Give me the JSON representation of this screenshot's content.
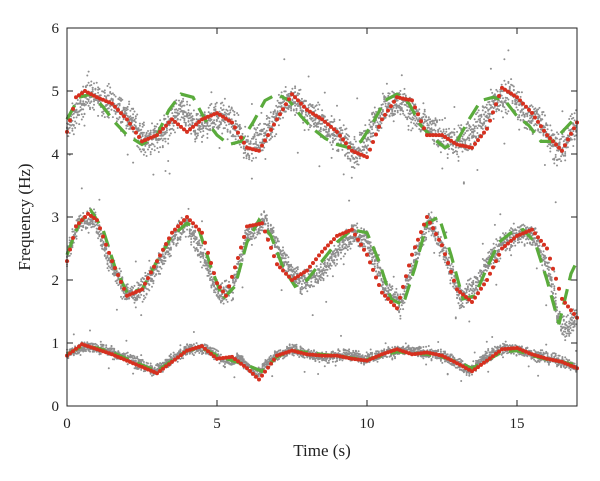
{
  "chart_data": {
    "type": "scatter",
    "title": "",
    "xlabel": "Time (s)",
    "ylabel": "Frequency (Hz)",
    "xlim": [
      0,
      17
    ],
    "ylim": [
      0,
      6
    ],
    "x_ticks": [
      0,
      5,
      10,
      15
    ],
    "y_ticks": [
      0,
      1,
      2,
      3,
      4,
      5,
      6
    ],
    "grid": false,
    "legend": "none",
    "colors": {
      "scatter": "#8f8f8f",
      "red_series": "#d6301f",
      "green_series": "#5aab3c"
    },
    "series": [
      {
        "style": "gray-dots",
        "bands": [
          {
            "x": [
              0,
              0.7,
              1.5,
              2.2,
              2.6,
              3.2,
              3.8,
              4.3,
              5.0,
              5.5,
              6.0,
              6.6,
              7.2,
              7.6,
              8.2,
              9.0,
              9.6,
              10.0,
              10.6,
              11.2,
              11.8,
              12.4,
              13.0,
              13.6,
              14.2,
              14.8,
              15.3,
              15.8,
              16.4,
              17.0
            ],
            "y": [
              4.4,
              4.95,
              4.8,
              4.5,
              4.2,
              4.35,
              4.7,
              4.4,
              4.6,
              4.5,
              4.1,
              4.3,
              4.8,
              4.85,
              4.6,
              4.3,
              4.0,
              4.25,
              4.8,
              4.8,
              4.5,
              4.3,
              4.15,
              4.35,
              4.8,
              4.95,
              4.6,
              4.55,
              4.0,
              4.5
            ],
            "spread": 0.22
          },
          {
            "x": [
              0,
              0.4,
              0.9,
              1.4,
              1.9,
              2.3,
              2.9,
              3.5,
              4.0,
              4.6,
              5.1,
              5.5,
              6.0,
              6.6,
              7.2,
              7.8,
              8.4,
              9.0,
              9.6,
              10.1,
              10.6,
              11.1,
              11.6,
              12.1,
              12.6,
              13.1,
              13.6,
              14.1,
              14.6,
              15.1,
              15.6,
              16.0,
              16.5,
              17.0
            ],
            "y": [
              2.4,
              2.9,
              3.0,
              2.3,
              1.85,
              1.75,
              2.1,
              2.6,
              2.9,
              2.3,
              1.75,
              1.85,
              2.7,
              2.95,
              2.35,
              1.95,
              2.1,
              2.45,
              2.75,
              2.55,
              1.9,
              1.6,
              2.3,
              2.95,
              2.4,
              1.7,
              1.9,
              2.35,
              2.6,
              2.75,
              2.7,
              2.2,
              1.2,
              1.4
            ],
            "spread": 0.16
          },
          {
            "x": [
              0,
              0.6,
              1.2,
              1.8,
              2.4,
              2.9,
              3.4,
              4.0,
              4.6,
              5.2,
              5.8,
              6.3,
              6.9,
              7.5,
              8.1,
              8.7,
              9.3,
              9.9,
              10.5,
              11.1,
              11.7,
              12.3,
              12.9,
              13.4,
              14.0,
              14.6,
              15.2,
              15.8,
              16.4,
              17.0
            ],
            "y": [
              0.82,
              0.95,
              0.9,
              0.8,
              0.68,
              0.55,
              0.7,
              0.9,
              0.92,
              0.72,
              0.75,
              0.5,
              0.78,
              0.9,
              0.82,
              0.78,
              0.82,
              0.76,
              0.82,
              0.88,
              0.86,
              0.82,
              0.72,
              0.55,
              0.8,
              0.92,
              0.88,
              0.78,
              0.72,
              0.6
            ],
            "spread": 0.08
          }
        ]
      },
      {
        "style": "red-dotted",
        "curves": [
          {
            "x": [
              0.0,
              0.3,
              0.6,
              1.0,
              1.5,
              2.0,
              2.5,
              3.0,
              3.5,
              4.0,
              4.5,
              5.0,
              5.5,
              6.0,
              6.4,
              7.0,
              7.5,
              8.0,
              8.5,
              9.0,
              9.5,
              10.0,
              10.5,
              11.0,
              11.5,
              12.0,
              12.5,
              13.0,
              13.5,
              14.0,
              14.5,
              15.0,
              15.5,
              16.0,
              16.5,
              17.0
            ],
            "y": [
              4.35,
              4.9,
              5.0,
              4.9,
              4.8,
              4.55,
              4.2,
              4.3,
              4.55,
              4.35,
              4.55,
              4.65,
              4.5,
              4.1,
              4.05,
              4.55,
              4.95,
              4.7,
              4.55,
              4.35,
              4.05,
              3.95,
              4.55,
              4.9,
              4.85,
              4.3,
              4.3,
              4.15,
              4.1,
              4.4,
              5.05,
              4.9,
              4.65,
              4.3,
              4.05,
              4.5
            ]
          },
          {
            "x": [
              0.0,
              0.3,
              0.7,
              1.0,
              1.5,
              2.0,
              2.5,
              3.0,
              3.5,
              4.0,
              4.5,
              5.0,
              5.3,
              5.7,
              6.0,
              6.5,
              7.0,
              7.5,
              8.0,
              8.5,
              9.0,
              9.5,
              10.0,
              10.5,
              11.0,
              11.5,
              12.0,
              12.5,
              13.0,
              13.5,
              14.0,
              14.5,
              15.0,
              15.5,
              16.0,
              16.5,
              17.0
            ],
            "y": [
              2.3,
              2.85,
              3.05,
              2.95,
              2.3,
              1.75,
              1.85,
              2.3,
              2.75,
              3.0,
              2.75,
              1.95,
              1.75,
              2.35,
              2.85,
              2.9,
              2.25,
              2.0,
              2.15,
              2.45,
              2.7,
              2.8,
              2.4,
              1.8,
              1.55,
              2.4,
              3.0,
              2.55,
              1.85,
              1.65,
              2.0,
              2.5,
              2.7,
              2.8,
              2.5,
              1.7,
              1.4
            ]
          },
          {
            "x": [
              0.0,
              0.5,
              1.0,
              1.5,
              2.0,
              2.5,
              3.0,
              3.5,
              4.0,
              4.5,
              5.0,
              5.5,
              6.0,
              6.4,
              7.0,
              7.5,
              8.0,
              8.5,
              9.0,
              9.5,
              10.0,
              10.5,
              11.0,
              11.5,
              12.0,
              12.5,
              13.0,
              13.5,
              14.0,
              14.5,
              15.0,
              15.5,
              16.0,
              16.5,
              17.0
            ],
            "y": [
              0.8,
              0.98,
              0.9,
              0.82,
              0.72,
              0.62,
              0.52,
              0.7,
              0.88,
              0.95,
              0.75,
              0.78,
              0.6,
              0.42,
              0.8,
              0.88,
              0.82,
              0.8,
              0.8,
              0.75,
              0.72,
              0.82,
              0.9,
              0.82,
              0.85,
              0.8,
              0.68,
              0.55,
              0.72,
              0.9,
              0.92,
              0.82,
              0.75,
              0.7,
              0.6
            ]
          }
        ]
      },
      {
        "style": "green-dashed",
        "curves": [
          {
            "x": [
              0.0,
              0.4,
              0.8,
              1.2,
              1.6,
              2.0,
              2.5,
              3.0,
              3.4,
              3.8,
              4.2,
              4.6,
              5.0,
              5.4,
              5.8,
              6.2,
              6.6,
              7.0,
              7.4,
              7.8,
              8.2,
              8.6,
              9.0,
              9.4,
              9.8,
              10.2,
              10.6,
              11.0,
              11.4,
              11.8,
              12.2,
              12.6,
              13.0,
              13.4,
              13.8,
              14.2,
              14.6,
              15.0,
              15.4,
              15.8,
              16.2,
              16.6,
              17.0
            ],
            "y": [
              4.55,
              4.9,
              4.95,
              4.75,
              4.5,
              4.3,
              4.15,
              4.3,
              4.7,
              4.95,
              4.9,
              4.55,
              4.3,
              4.15,
              4.2,
              4.5,
              4.85,
              4.95,
              4.85,
              4.6,
              4.4,
              4.25,
              4.15,
              4.1,
              4.2,
              4.5,
              4.85,
              4.95,
              4.8,
              4.45,
              4.25,
              4.1,
              4.2,
              4.55,
              4.85,
              4.9,
              4.85,
              4.6,
              4.45,
              4.2,
              4.2,
              4.4,
              4.6
            ]
          },
          {
            "x": [
              0.0,
              0.4,
              0.8,
              1.2,
              1.6,
              2.0,
              2.5,
              3.0,
              3.5,
              4.0,
              4.4,
              4.8,
              5.2,
              5.6,
              6.0,
              6.4,
              6.8,
              7.2,
              7.6,
              8.0,
              8.5,
              9.0,
              9.5,
              10.0,
              10.4,
              10.8,
              11.2,
              11.6,
              12.0,
              12.4,
              12.8,
              13.2,
              13.6,
              14.0,
              14.4,
              14.8,
              15.2,
              15.6,
              16.0,
              16.4,
              16.8,
              17.0
            ],
            "y": [
              2.4,
              2.9,
              3.1,
              2.8,
              2.2,
              1.8,
              1.85,
              2.3,
              2.7,
              2.9,
              2.8,
              2.2,
              1.7,
              1.9,
              2.6,
              2.95,
              2.7,
              2.2,
              1.9,
              2.0,
              2.3,
              2.6,
              2.8,
              2.75,
              2.3,
              1.7,
              1.6,
              2.2,
              2.9,
              3.0,
              2.4,
              1.7,
              1.75,
              2.2,
              2.6,
              2.75,
              2.8,
              2.6,
              2.0,
              1.3,
              2.1,
              2.3
            ]
          },
          {
            "x": [
              0.0,
              0.5,
              1.0,
              1.5,
              2.0,
              2.5,
              3.0,
              3.5,
              4.0,
              4.5,
              5.0,
              5.5,
              6.0,
              6.5,
              7.0,
              7.5,
              8.0,
              8.5,
              9.0,
              9.5,
              10.0,
              10.5,
              11.0,
              11.5,
              12.0,
              12.5,
              13.0,
              13.5,
              14.0,
              14.5,
              15.0,
              15.5,
              16.0,
              16.5,
              17.0
            ],
            "y": [
              0.82,
              0.95,
              0.92,
              0.85,
              0.75,
              0.65,
              0.55,
              0.72,
              0.88,
              0.92,
              0.8,
              0.72,
              0.65,
              0.55,
              0.78,
              0.88,
              0.85,
              0.82,
              0.8,
              0.76,
              0.74,
              0.8,
              0.86,
              0.84,
              0.82,
              0.78,
              0.7,
              0.6,
              0.72,
              0.86,
              0.88,
              0.8,
              0.74,
              0.7,
              0.65
            ]
          }
        ]
      }
    ]
  }
}
